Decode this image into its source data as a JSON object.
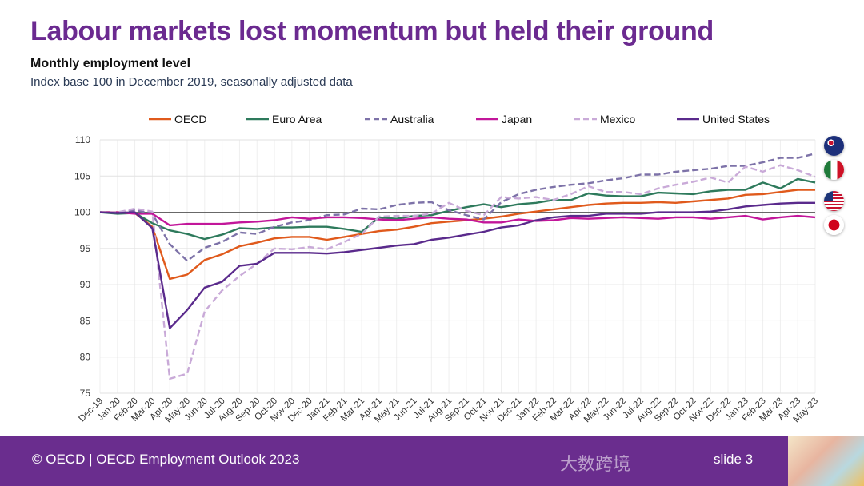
{
  "slide": {
    "title": "Labour markets lost momentum but held their ground",
    "subtitle": "Monthly employment level",
    "subtitle2": "Index base 100 in December 2019, seasonally adjusted data",
    "footer": "© OECD | OECD Employment Outlook 2023",
    "slide_number": "slide 3",
    "watermark": "大数跨境"
  },
  "flags": [
    "australia-flag",
    "mexico-flag",
    "united-states-flag",
    "japan-flag"
  ],
  "chart_data": {
    "type": "line",
    "title": "Monthly employment level",
    "ylim": [
      75,
      110
    ],
    "yticks": [
      "75",
      "80",
      "85",
      "90",
      "95",
      "100",
      "105",
      "110"
    ],
    "reference_line": 100,
    "grid": true,
    "legend_position": "top",
    "x": [
      "Dec-19",
      "Jan-20",
      "Feb-20",
      "Mar-20",
      "Apr-20",
      "May-20",
      "Jun-20",
      "Jul-20",
      "Aug-20",
      "Sep-20",
      "Oct-20",
      "Nov-20",
      "Dec-20",
      "Jan-21",
      "Feb-21",
      "Mar-21",
      "Apr-21",
      "May-21",
      "Jun-21",
      "Jul-21",
      "Aug-21",
      "Sep-21",
      "Oct-21",
      "Nov-21",
      "Dec-21",
      "Jan-22",
      "Feb-22",
      "Mar-22",
      "Apr-22",
      "May-22",
      "Jun-22",
      "Jul-22",
      "Aug-22",
      "Sep-22",
      "Oct-22",
      "Nov-22",
      "Dec-22",
      "Jan-23",
      "Feb-23",
      "Mar-23",
      "Apr-23",
      "May-23"
    ],
    "series": [
      {
        "name": "OECD",
        "color": "#e05a1c",
        "dashed": false,
        "values": [
          100,
          100,
          99.9,
          98,
          90.8,
          91.4,
          93.4,
          94.2,
          95.3,
          95.8,
          96.4,
          96.6,
          96.6,
          96.2,
          96.6,
          97.0,
          97.4,
          97.6,
          98.0,
          98.5,
          98.7,
          98.9,
          99.1,
          99.4,
          99.8,
          100.1,
          100.4,
          100.7,
          101.0,
          101.2,
          101.3,
          101.3,
          101.4,
          101.3,
          101.5,
          101.7,
          101.9,
          102.4,
          102.5,
          102.8,
          103.1,
          103.1
        ]
      },
      {
        "name": "Euro Area",
        "color": "#2e7a5c",
        "dashed": false,
        "values": [
          100,
          99.8,
          99.9,
          98.5,
          97.5,
          97.0,
          96.3,
          96.9,
          97.8,
          97.7,
          97.9,
          97.9,
          98.0,
          98.0,
          97.7,
          97.3,
          99.3,
          99.1,
          99.5,
          99.6,
          100.2,
          100.7,
          101.1,
          100.7,
          101.1,
          101.3,
          101.7,
          101.7,
          102.6,
          102.3,
          102.2,
          102.2,
          102.7,
          102.6,
          102.5,
          102.9,
          103.1,
          103.1,
          104.1,
          103.3,
          104.6,
          104.1
        ]
      },
      {
        "name": "Australia",
        "color": "#7d72a8",
        "dashed": true,
        "values": [
          100,
          99.9,
          100.3,
          99.8,
          95.6,
          93.3,
          95.1,
          95.9,
          97.2,
          97.0,
          98.0,
          98.6,
          98.9,
          99.6,
          99.7,
          100.5,
          100.4,
          101.0,
          101.3,
          101.4,
          100.3,
          99.6,
          99.0,
          101.4,
          102.5,
          103.1,
          103.5,
          103.8,
          104.0,
          104.4,
          104.7,
          105.2,
          105.2,
          105.6,
          105.8,
          106.0,
          106.4,
          106.4,
          106.9,
          107.5,
          107.5,
          108.1
        ]
      },
      {
        "name": "Japan",
        "color": "#c2169a",
        "dashed": false,
        "values": [
          100,
          100,
          99.8,
          99.8,
          98.2,
          98.4,
          98.4,
          98.4,
          98.6,
          98.7,
          98.9,
          99.3,
          99.1,
          99.3,
          99.3,
          99.2,
          99.0,
          98.9,
          99.1,
          99.3,
          99.1,
          99.0,
          98.6,
          98.6,
          99.0,
          98.8,
          98.9,
          99.2,
          99.1,
          99.2,
          99.3,
          99.2,
          99.1,
          99.3,
          99.3,
          99.1,
          99.3,
          99.5,
          99.0,
          99.3,
          99.5,
          99.3
        ]
      },
      {
        "name": "Mexico",
        "color": "#c9aad8",
        "dashed": true,
        "values": [
          100,
          100,
          100.5,
          100.1,
          77.0,
          77.7,
          86.3,
          89.2,
          91.2,
          92.9,
          95.0,
          94.9,
          95.2,
          94.9,
          95.9,
          97.0,
          99.4,
          99.5,
          99.5,
          99.8,
          101.3,
          100.2,
          99.6,
          102.1,
          101.9,
          102.1,
          101.7,
          102.5,
          103.6,
          102.8,
          102.8,
          102.5,
          103.3,
          103.8,
          104.2,
          104.8,
          104.1,
          106.3,
          105.6,
          106.5,
          105.8,
          104.9
        ]
      },
      {
        "name": "United States",
        "color": "#5a2a8c",
        "dashed": false,
        "values": [
          100,
          99.9,
          100,
          97.8,
          84.0,
          86.5,
          89.6,
          90.4,
          92.6,
          92.9,
          94.4,
          94.4,
          94.4,
          94.3,
          94.5,
          94.8,
          95.1,
          95.4,
          95.6,
          96.2,
          96.5,
          96.9,
          97.3,
          97.9,
          98.2,
          98.9,
          99.3,
          99.5,
          99.5,
          99.8,
          99.8,
          99.8,
          100.0,
          100.0,
          100.0,
          100.1,
          100.4,
          100.8,
          101.0,
          101.2,
          101.3,
          101.3
        ]
      }
    ]
  }
}
